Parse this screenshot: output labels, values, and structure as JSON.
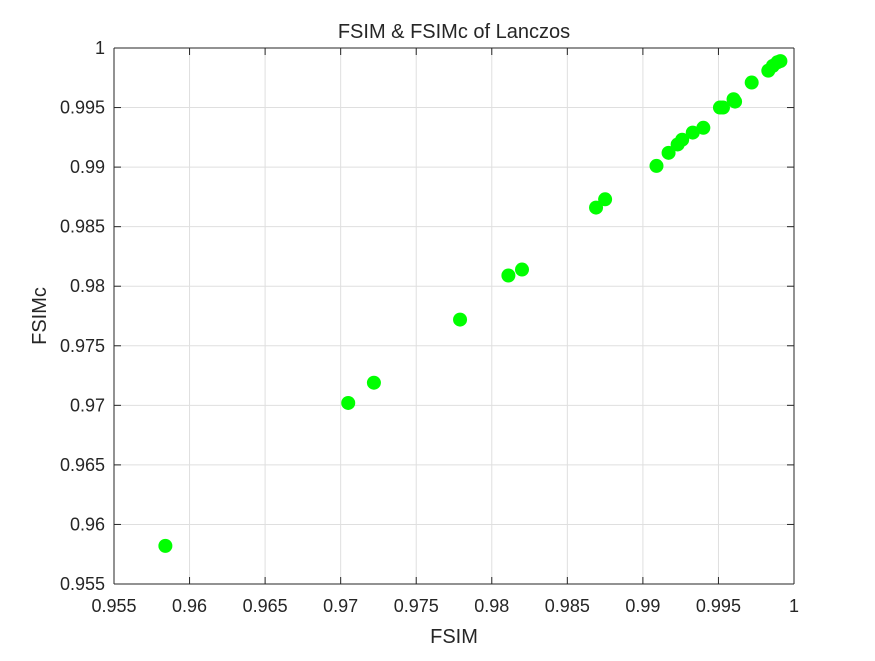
{
  "chart_data": {
    "type": "scatter",
    "title": "FSIM & FSIMc of Lanczos",
    "xlabel": "FSIM",
    "ylabel": "FSIMc",
    "xlim": [
      0.955,
      1
    ],
    "ylim": [
      0.955,
      1
    ],
    "xticks": [
      0.955,
      0.96,
      0.965,
      0.97,
      0.975,
      0.98,
      0.985,
      0.99,
      0.995,
      1
    ],
    "yticks": [
      0.955,
      0.96,
      0.965,
      0.97,
      0.975,
      0.98,
      0.985,
      0.99,
      0.995,
      1
    ],
    "xtick_labels": [
      "0.955",
      "0.96",
      "0.965",
      "0.97",
      "0.975",
      "0.98",
      "0.985",
      "0.99",
      "0.995",
      "1"
    ],
    "ytick_labels": [
      "0.955",
      "0.96",
      "0.965",
      "0.97",
      "0.975",
      "0.98",
      "0.985",
      "0.99",
      "0.995",
      "1"
    ],
    "grid": true,
    "marker_color": "#00ff00",
    "series": [
      {
        "x": [
          0.9584,
          0.9705,
          0.9722,
          0.9779,
          0.9811,
          0.982,
          0.9869,
          0.9875,
          0.9909,
          0.9917,
          0.9923,
          0.9926,
          0.9933,
          0.994,
          0.9951,
          0.9953,
          0.996,
          0.9961,
          0.9972,
          0.9983,
          0.9986,
          0.9989,
          0.9991
        ],
        "y": [
          0.9582,
          0.9702,
          0.9719,
          0.9772,
          0.9809,
          0.9814,
          0.9866,
          0.9873,
          0.9901,
          0.9912,
          0.9919,
          0.9923,
          0.9929,
          0.9933,
          0.995,
          0.995,
          0.9957,
          0.9955,
          0.9971,
          0.9981,
          0.9985,
          0.9988,
          0.9989
        ]
      }
    ]
  }
}
